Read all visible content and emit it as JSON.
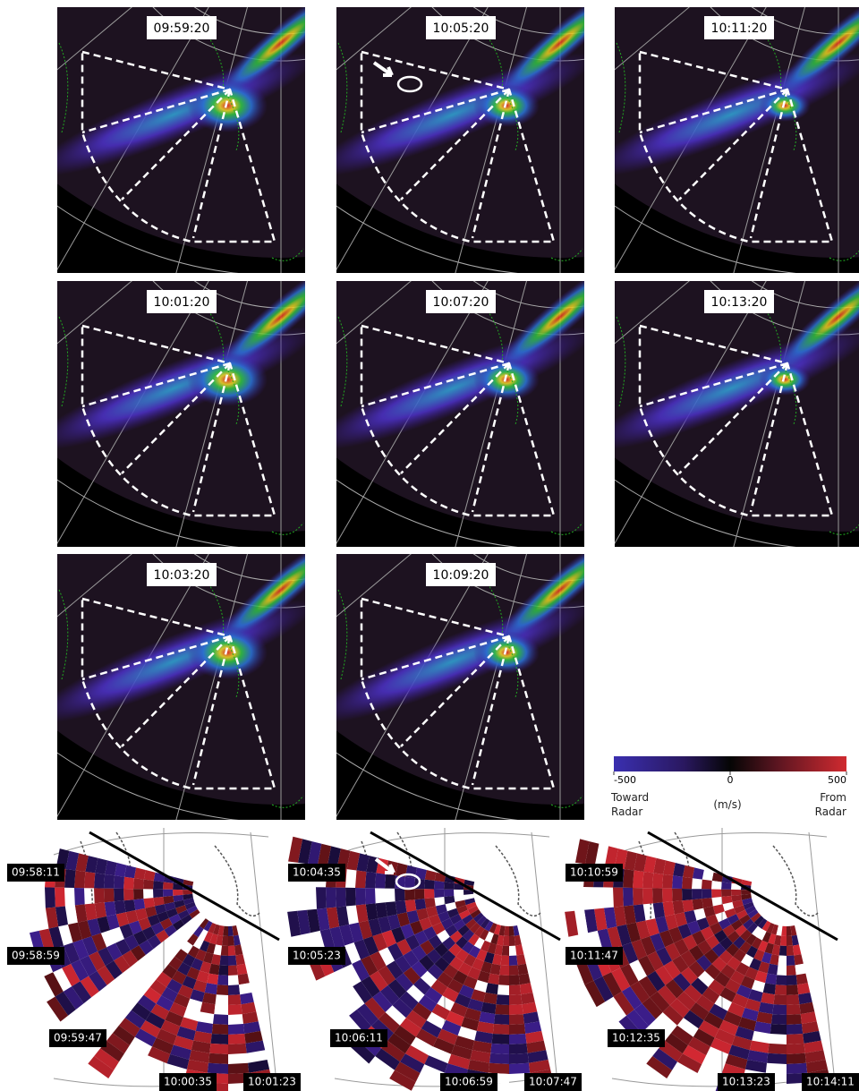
{
  "auroral_panels": [
    {
      "time": "09:59:20"
    },
    {
      "time": "10:01:20"
    },
    {
      "time": "10:03:20"
    },
    {
      "time": "10:05:20"
    },
    {
      "time": "10:07:20"
    },
    {
      "time": "10:09:20"
    },
    {
      "time": "10:11:20"
    },
    {
      "time": "10:13:20"
    }
  ],
  "colorbar": {
    "ticks": [
      -500,
      0,
      500
    ],
    "toward_label": "Toward Radar",
    "unit": "(m/s)",
    "from_label": "From Radar"
  },
  "radar_panels": [
    {
      "labels": [
        "09:58:11",
        "09:58:59",
        "09:59:47",
        "10:00:35",
        "10:01:23"
      ]
    },
    {
      "labels": [
        "10:04:35",
        "10:05:23",
        "10:06:11",
        "10:06:59",
        "10:07:47"
      ]
    },
    {
      "labels": [
        "10:10:59",
        "10:11:47",
        "10:12:35",
        "10:13:23",
        "10:14:11"
      ]
    }
  ]
}
